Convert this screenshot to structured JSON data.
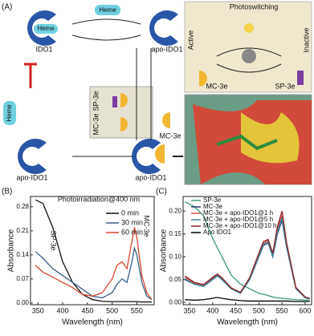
{
  "diagram": {
    "panel": "(A)",
    "heme": [
      "Heme",
      "Heme",
      "Heme"
    ],
    "ido1": "IDO1",
    "apo": [
      "apo-IDO1",
      "apo-IDO1",
      "apo-IDO1"
    ],
    "photoswitching": "Photoswitching",
    "active": "Active",
    "inactive": "Inactive",
    "mc": [
      "MC-3e",
      "MC-3e",
      "MC-3e"
    ],
    "sp": [
      "SP-3e",
      "SP-3e"
    ]
  },
  "chart_data": [
    {
      "type": "line",
      "label": "(B)",
      "title": "Photoirradiation@400 nm",
      "x_label": "Wavelength (nm)",
      "y_label": "Absorbance",
      "annotations": [
        "SP-3e",
        "MC-3e"
      ],
      "x": [
        345,
        360,
        380,
        400,
        420,
        440,
        460,
        480,
        500,
        510,
        520,
        530,
        540,
        545,
        550,
        560,
        570,
        580
      ],
      "xlim": [
        335,
        585
      ],
      "xticks": [
        350,
        400,
        450,
        500,
        550
      ],
      "ylim": [
        -0.005,
        0.31
      ],
      "yticks": [
        {
          "value": 0,
          "label": "0.00"
        },
        0.07,
        0.14,
        0.21,
        0.28
      ],
      "series": [
        {
          "name": "0 min",
          "color": "#111111",
          "values": [
            0.3,
            0.29,
            0.22,
            0.12,
            0.06,
            0.025,
            0.01,
            0.005,
            0.004,
            0.004,
            0.004,
            0.004,
            0.004,
            0.004,
            0.004,
            0.003,
            0.003,
            0.003
          ]
        },
        {
          "name": "30 min",
          "color": "#3a5f86",
          "values": [
            0.15,
            0.13,
            0.1,
            0.08,
            0.06,
            0.04,
            0.02,
            0.015,
            0.03,
            0.055,
            0.07,
            0.06,
            0.12,
            0.16,
            0.14,
            0.06,
            0.02,
            0.01
          ]
        },
        {
          "name": "60 min",
          "color": "#d9462f",
          "values": [
            0.11,
            0.09,
            0.075,
            0.06,
            0.045,
            0.025,
            0.02,
            0.03,
            0.07,
            0.11,
            0.12,
            0.1,
            0.18,
            0.22,
            0.19,
            0.08,
            0.03,
            0.01
          ]
        }
      ]
    },
    {
      "type": "line",
      "label": "(C)",
      "x_label": "Wavelength (nm)",
      "y_label": "Absorbance",
      "x": [
        340,
        360,
        380,
        400,
        410,
        420,
        440,
        460,
        480,
        500,
        510,
        520,
        530,
        540,
        550,
        560,
        580,
        600,
        610
      ],
      "xlim": [
        336,
        614
      ],
      "xticks": [
        350,
        400,
        450,
        500,
        550,
        600
      ],
      "ylim": [
        -0.005,
        0.232
      ],
      "yticks": [
        {
          "value": 0,
          "label": "0.00"
        },
        0.05,
        {
          "value": 0.1,
          "label": "0.10"
        },
        0.15,
        {
          "value": 0.2,
          "label": "0.20"
        }
      ],
      "series": [
        {
          "name": "SP-3e",
          "color": "#3f9a72",
          "values": [
            0.22,
            0.21,
            0.19,
            0.14,
            0.12,
            0.1,
            0.06,
            0.04,
            0.03,
            0.02,
            0.018,
            0.015,
            0.012,
            0.01,
            0.009,
            0.008,
            0.006,
            0.005,
            0.005
          ]
        },
        {
          "name": "MC-3e",
          "color": "#283b78",
          "values": [
            0.05,
            0.04,
            0.035,
            0.05,
            0.058,
            0.05,
            0.03,
            0.02,
            0.05,
            0.1,
            0.125,
            0.13,
            0.1,
            0.15,
            0.18,
            0.12,
            0.03,
            0.01,
            0.008
          ]
        },
        {
          "name": "MC-3e + apo-IDO1@1 h",
          "color": "#d9534f",
          "values": [
            0.055,
            0.042,
            0.037,
            0.053,
            0.06,
            0.052,
            0.031,
            0.021,
            0.052,
            0.105,
            0.13,
            0.135,
            0.105,
            0.16,
            0.19,
            0.125,
            0.032,
            0.011,
            0.009
          ]
        },
        {
          "name": "MC-3e + apo-IDO1@5 h",
          "color": "#3a8ea0",
          "values": [
            0.052,
            0.04,
            0.036,
            0.051,
            0.059,
            0.051,
            0.03,
            0.02,
            0.051,
            0.102,
            0.127,
            0.132,
            0.102,
            0.155,
            0.185,
            0.122,
            0.031,
            0.01,
            0.008
          ]
        },
        {
          "name": "MC-3e + apo-IDO1@10 h",
          "color": "#8b1c1c",
          "values": [
            0.058,
            0.044,
            0.039,
            0.055,
            0.062,
            0.054,
            0.032,
            0.022,
            0.054,
            0.108,
            0.133,
            0.138,
            0.108,
            0.165,
            0.2,
            0.13,
            0.033,
            0.012,
            0.009
          ]
        },
        {
          "name": "Apo IDO1",
          "color": "#000000",
          "values": [
            0.006,
            0.005,
            0.006,
            0.009,
            0.011,
            0.009,
            0.006,
            0.004,
            0.003,
            0.003,
            0.003,
            0.003,
            0.003,
            0.003,
            0.003,
            0.003,
            0.002,
            0.002,
            0.002
          ]
        }
      ]
    }
  ]
}
